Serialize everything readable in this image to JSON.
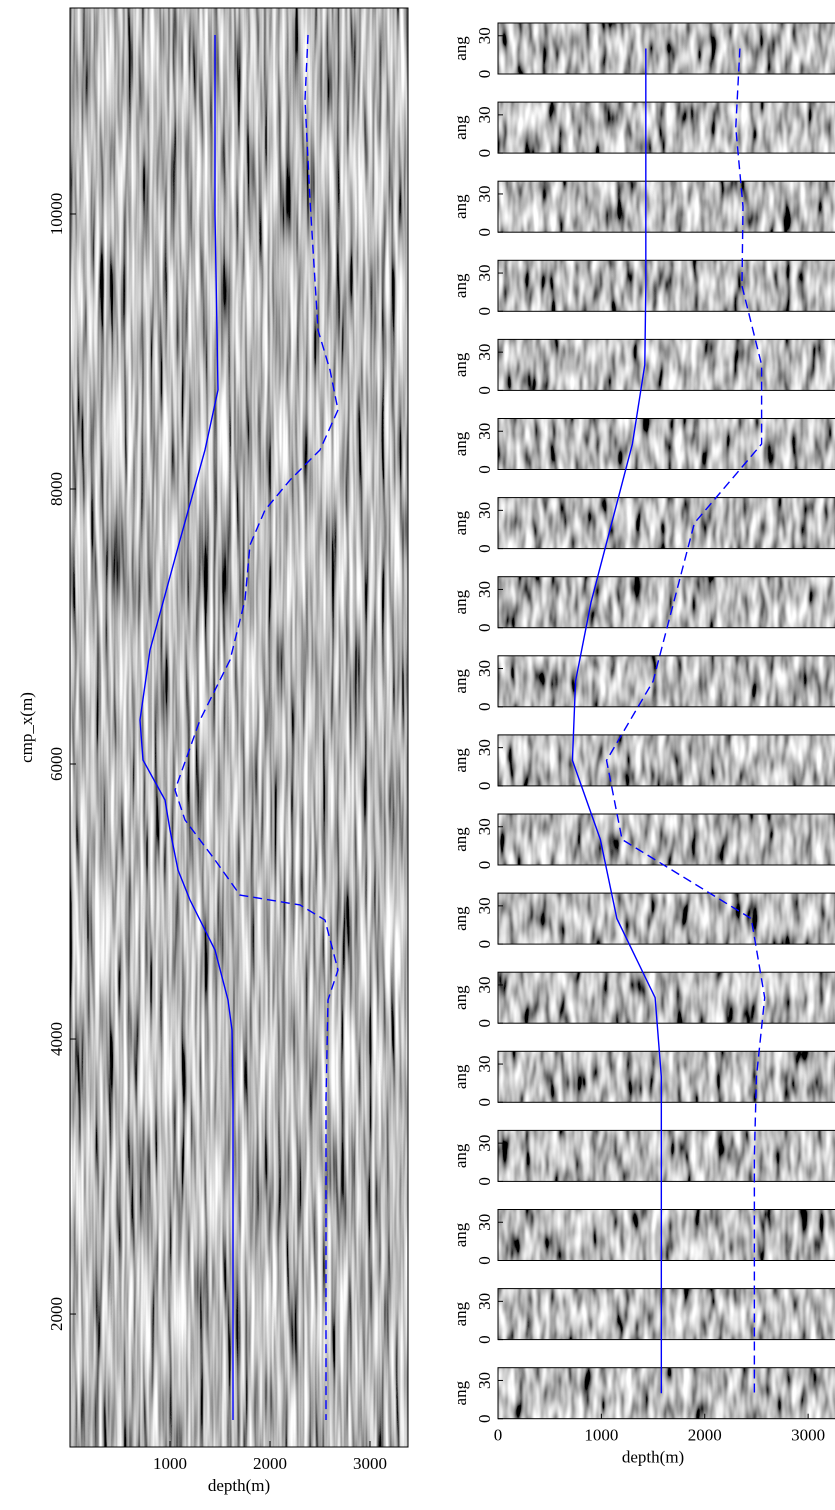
{
  "chart_data": [
    {
      "type": "line",
      "xlabel": "depth(m)",
      "ylabel": "cmp_x(m)",
      "xlim": [
        0,
        3380
      ],
      "ylim": [
        1033,
        11498
      ],
      "xticks": [
        1000,
        2000,
        3000
      ],
      "yticks": [
        2000,
        4000,
        6000,
        8000,
        10000
      ],
      "series": [
        {
          "style": "solid",
          "color": "#0000ff",
          "x": [
            1450,
            1450,
            1480,
            1350,
            1100,
            800,
            700,
            730,
            950,
            1000,
            1080,
            1200,
            1450,
            1580,
            1620,
            1630,
            1630
          ],
          "values": [
            11302,
            10000,
            8720,
            8284,
            7629,
            6829,
            6320,
            6029,
            5738,
            5520,
            5229,
            5011,
            4647,
            4284,
            4065,
            3556,
            1229
          ]
        },
        {
          "style": "dashed",
          "color": "#0000ff",
          "x": [
            2380,
            2350,
            2400,
            2480,
            2600,
            2680,
            2500,
            2200,
            1950,
            1800,
            1750,
            1600,
            1300,
            1050,
            1150,
            1450,
            1700,
            2300,
            2550,
            2680,
            2580,
            2560,
            2560
          ],
          "values": [
            11302,
            10829,
            10102,
            9156,
            8865,
            8575,
            8284,
            8065,
            7847,
            7593,
            7193,
            6756,
            6320,
            5811,
            5593,
            5302,
            5047,
            4975,
            4865,
            4502,
            4284,
            3556,
            1229
          ]
        }
      ]
    },
    {
      "type": "line",
      "xlabel": "depth(m)",
      "ylabel": "ang",
      "xlim": [
        0,
        3260
      ],
      "ylim": [
        0,
        40
      ],
      "xticks": [
        0,
        1000,
        2000,
        3000
      ],
      "yticks": [
        0,
        30
      ],
      "series": [
        {
          "style": "solid",
          "color": "#0000ff",
          "values": [
            1430,
            1430,
            1430,
            1430,
            1420,
            1300,
            1100,
            900,
            750,
            720,
            990,
            1150,
            1520,
            1580,
            1580,
            1580,
            1580,
            1580
          ]
        },
        {
          "style": "dashed",
          "color": "#0000ff",
          "values": [
            2340,
            2300,
            2370,
            2360,
            2550,
            2550,
            1900,
            1700,
            1500,
            1050,
            1200,
            2450,
            2580,
            2500,
            2480,
            2480,
            2480,
            2480
          ]
        }
      ]
    }
  ]
}
